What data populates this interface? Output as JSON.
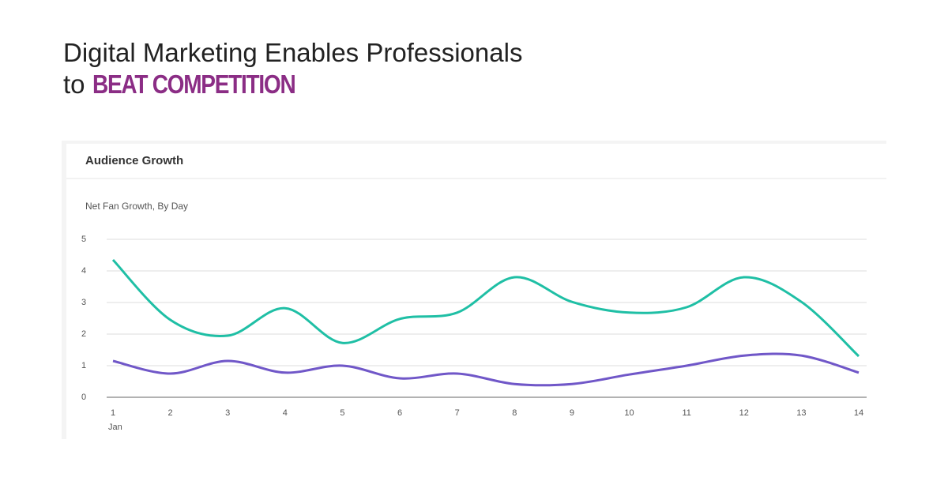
{
  "header": {
    "line1": "Digital Marketing Enables Professionals",
    "line2_prefix": "to",
    "line2_highlight": "BEAT COMPETITION"
  },
  "card": {
    "title": "Audience Growth"
  },
  "chart_data": {
    "type": "line",
    "title": "Net Fan Growth, By Day",
    "x": [
      1,
      2,
      3,
      4,
      5,
      6,
      7,
      8,
      9,
      10,
      11,
      12,
      13,
      14
    ],
    "x_month_label": "Jan",
    "series": [
      {
        "color": "#1fbfa5",
        "values": [
          4.35,
          2.45,
          1.95,
          2.82,
          1.72,
          2.48,
          2.68,
          3.8,
          3.02,
          2.68,
          2.85,
          3.8,
          3.02,
          1.3
        ]
      },
      {
        "color": "#7057c8",
        "values": [
          1.15,
          0.75,
          1.15,
          0.78,
          1.0,
          0.6,
          0.75,
          0.42,
          0.42,
          0.72,
          1.0,
          1.32,
          1.32,
          0.78
        ]
      }
    ],
    "ylim": [
      0,
      5
    ],
    "yticks": [
      0,
      1,
      2,
      3,
      4,
      5
    ],
    "grid": true,
    "smooth": true
  }
}
